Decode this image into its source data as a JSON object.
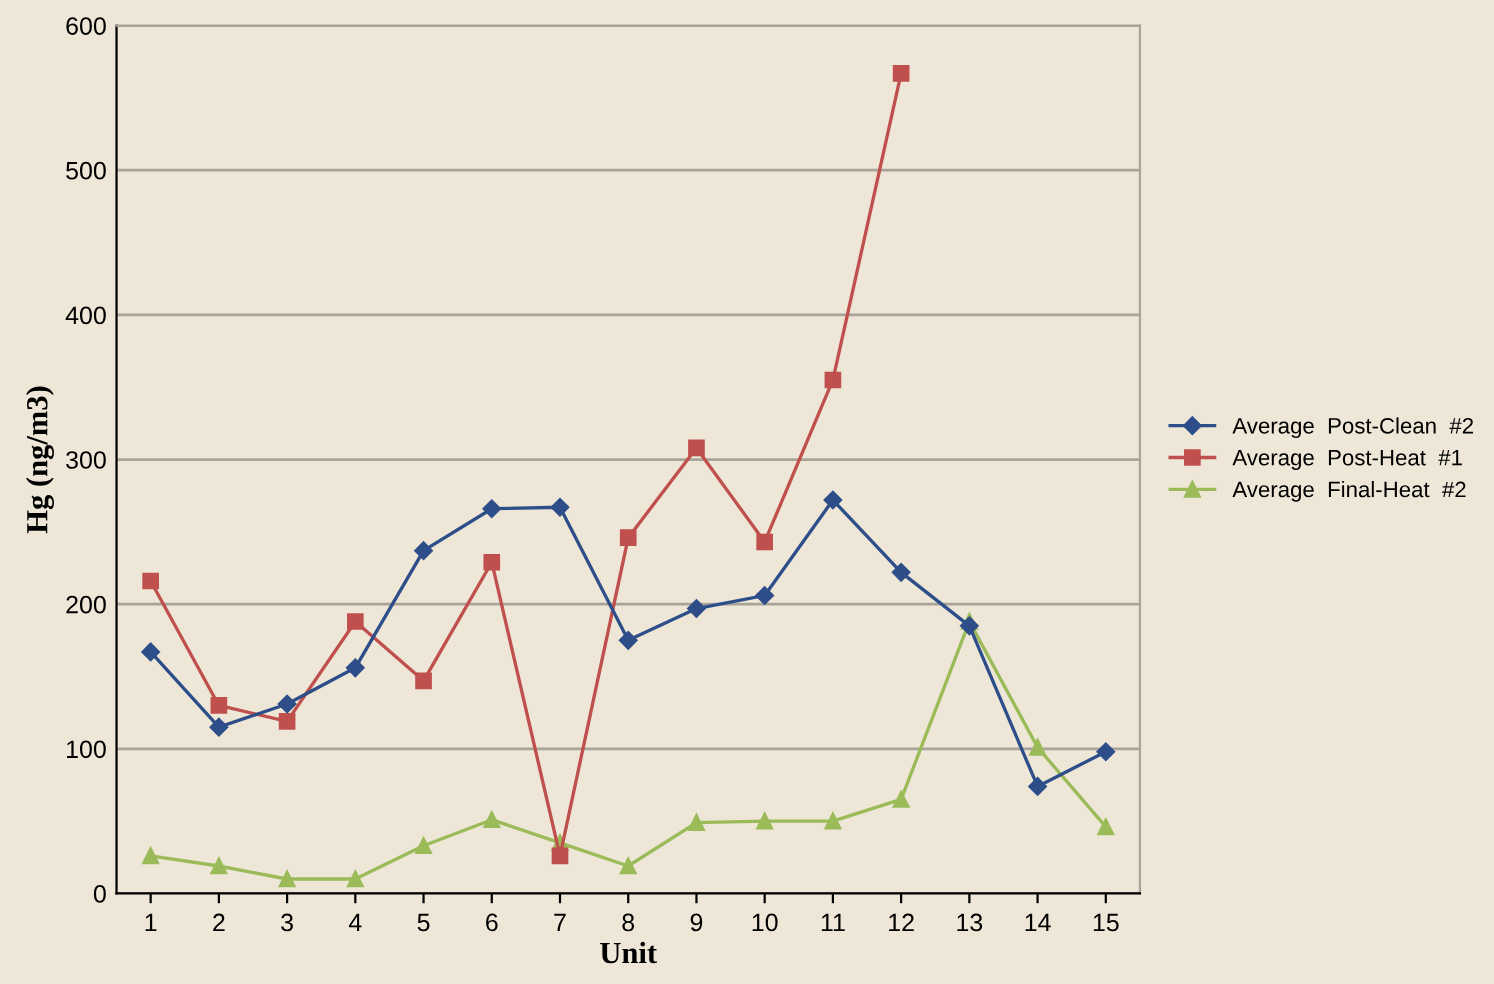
{
  "chart_data": {
    "type": "line",
    "xlabel": "Unit",
    "ylabel": "Hg (ng/m3)",
    "categories": [
      "1",
      "2",
      "3",
      "4",
      "5",
      "6",
      "7",
      "8",
      "9",
      "10",
      "11",
      "12",
      "13",
      "14",
      "15"
    ],
    "series": [
      {
        "name": "Average  Post-Clean  #2",
        "color": "#2e4e8a",
        "marker": "diamond",
        "values": [
          167,
          115,
          131,
          156,
          237,
          266,
          267,
          175,
          197,
          206,
          272,
          222,
          185,
          74,
          98
        ]
      },
      {
        "name": "Average  Post-Heat  #1",
        "color": "#c0504d",
        "marker": "square",
        "values": [
          216,
          130,
          119,
          188,
          147,
          229,
          26,
          246,
          308,
          243,
          355,
          567,
          null,
          null,
          null
        ]
      },
      {
        "name": "Average  Final-Heat  #2",
        "color": "#9bbb59",
        "marker": "triangle",
        "values": [
          26,
          19,
          10,
          10,
          33,
          51,
          35,
          19,
          49,
          50,
          50,
          65,
          188,
          101,
          46
        ]
      }
    ],
    "ylim": [
      0,
      600
    ],
    "yticks": [
      0,
      100,
      200,
      300,
      400,
      500,
      600
    ],
    "grid": "y",
    "legend": "right",
    "line_style": "solid"
  }
}
